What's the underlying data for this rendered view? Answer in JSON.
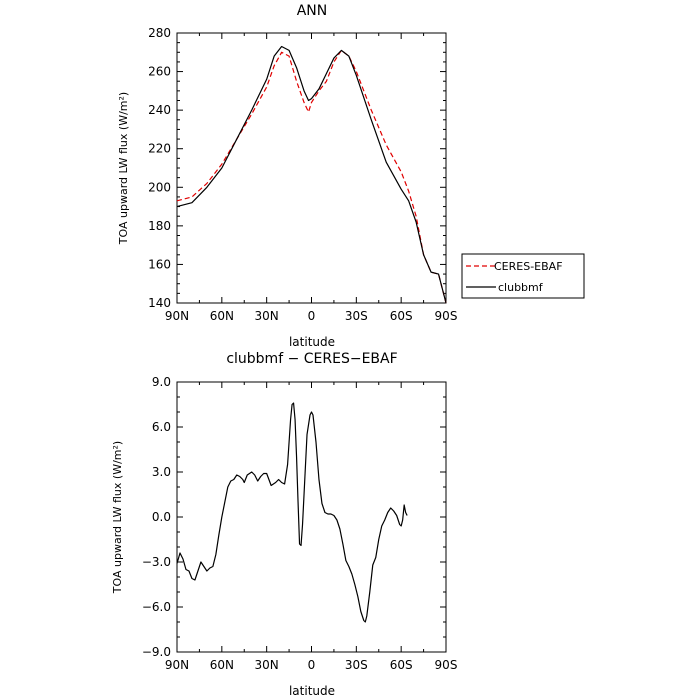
{
  "chart_data": [
    {
      "type": "line",
      "title": "ANN",
      "xlabel": "latitude",
      "ylabel": "TOA upward LW flux (W/m²)",
      "xlim": [
        90,
        -90
      ],
      "ylim": [
        140,
        280
      ],
      "xticks": [
        {
          "v": 90,
          "label": "90N"
        },
        {
          "v": 60,
          "label": "60N"
        },
        {
          "v": 30,
          "label": "30N"
        },
        {
          "v": 0,
          "label": "0"
        },
        {
          "v": -30,
          "label": "30S"
        },
        {
          "v": -60,
          "label": "60S"
        },
        {
          "v": -90,
          "label": "90S"
        }
      ],
      "yticks": [
        {
          "v": 140,
          "label": "140"
        },
        {
          "v": 160,
          "label": "160"
        },
        {
          "v": 180,
          "label": "180"
        },
        {
          "v": 200,
          "label": "200"
        },
        {
          "v": 220,
          "label": "220"
        },
        {
          "v": 240,
          "label": "240"
        },
        {
          "v": 260,
          "label": "260"
        },
        {
          "v": 280,
          "label": "280"
        }
      ],
      "legend": "outside-right",
      "series": [
        {
          "name": "CERES-EBAF",
          "color": "#e00000",
          "dash": "dashed",
          "points": [
            [
              90,
              193
            ],
            [
              80,
              195
            ],
            [
              70,
              202
            ],
            [
              60,
              212
            ],
            [
              50,
              225
            ],
            [
              40,
              238
            ],
            [
              30,
              252
            ],
            [
              25,
              263
            ],
            [
              20,
              270
            ],
            [
              15,
              268
            ],
            [
              10,
              255
            ],
            [
              5,
              244
            ],
            [
              2,
              239
            ],
            [
              0,
              244
            ],
            [
              -5,
              250
            ],
            [
              -10,
              255
            ],
            [
              -15,
              265
            ],
            [
              -20,
              271
            ],
            [
              -25,
              268
            ],
            [
              -30,
              260
            ],
            [
              -40,
              240
            ],
            [
              -50,
              222
            ],
            [
              -60,
              208
            ],
            [
              -65,
              198
            ],
            [
              -70,
              185
            ],
            [
              -75,
              165
            ],
            [
              -80,
              156
            ],
            [
              -85,
              155
            ],
            [
              -90,
              140
            ]
          ]
        },
        {
          "name": "clubbmf",
          "color": "#000000",
          "dash": "solid",
          "points": [
            [
              90,
              190
            ],
            [
              80,
              192
            ],
            [
              70,
              200
            ],
            [
              60,
              210
            ],
            [
              50,
              225
            ],
            [
              40,
              240
            ],
            [
              30,
              256
            ],
            [
              25,
              268
            ],
            [
              20,
              273
            ],
            [
              15,
              271
            ],
            [
              10,
              262
            ],
            [
              5,
              250
            ],
            [
              2,
              245
            ],
            [
              0,
              246
            ],
            [
              -5,
              251
            ],
            [
              -10,
              259
            ],
            [
              -15,
              267
            ],
            [
              -20,
              271
            ],
            [
              -25,
              268
            ],
            [
              -30,
              258
            ],
            [
              -40,
              235
            ],
            [
              -50,
              213
            ],
            [
              -60,
              199
            ],
            [
              -65,
              193
            ],
            [
              -70,
              182
            ],
            [
              -75,
              165
            ],
            [
              -80,
              156
            ],
            [
              -85,
              155
            ],
            [
              -90,
              140
            ]
          ]
        }
      ]
    },
    {
      "type": "line",
      "title": "clubbmf − CERES−EBAF",
      "xlabel": "latitude",
      "ylabel": "TOA upward LW flux (W/m²)",
      "xlim": [
        90,
        -90
      ],
      "ylim": [
        -9,
        9
      ],
      "xticks": [
        {
          "v": 90,
          "label": "90N"
        },
        {
          "v": 60,
          "label": "60N"
        },
        {
          "v": 30,
          "label": "30N"
        },
        {
          "v": 0,
          "label": "0"
        },
        {
          "v": -30,
          "label": "30S"
        },
        {
          "v": -60,
          "label": "60S"
        },
        {
          "v": -90,
          "label": "90S"
        }
      ],
      "yticks": [
        {
          "v": -9,
          "label": "−9.0"
        },
        {
          "v": -6,
          "label": "−6.0"
        },
        {
          "v": -3,
          "label": "−3.0"
        },
        {
          "v": 0,
          "label": "0.0"
        },
        {
          "v": 3,
          "label": "3.0"
        },
        {
          "v": 6,
          "label": "6.0"
        },
        {
          "v": 9,
          "label": "9.0"
        }
      ],
      "series": [
        {
          "color": "#000000",
          "dash": "solid",
          "points": [
            [
              90,
              -3.1
            ],
            [
              88,
              -2.4
            ],
            [
              86,
              -2.8
            ],
            [
              84,
              -3.5
            ],
            [
              82,
              -3.6
            ],
            [
              80,
              -4.1
            ],
            [
              78,
              -4.2
            ],
            [
              76,
              -3.6
            ],
            [
              74,
              -3.0
            ],
            [
              72,
              -3.3
            ],
            [
              70,
              -3.6
            ],
            [
              68,
              -3.4
            ],
            [
              66,
              -3.3
            ],
            [
              64,
              -2.5
            ],
            [
              62,
              -1.2
            ],
            [
              60,
              0.0
            ],
            [
              58,
              1.0
            ],
            [
              56,
              2.0
            ],
            [
              54,
              2.4
            ],
            [
              52,
              2.5
            ],
            [
              50,
              2.8
            ],
            [
              48,
              2.7
            ],
            [
              46,
              2.5
            ],
            [
              45,
              2.3
            ],
            [
              43,
              2.8
            ],
            [
              40,
              3.0
            ],
            [
              38,
              2.8
            ],
            [
              36,
              2.4
            ],
            [
              34,
              2.7
            ],
            [
              32,
              2.9
            ],
            [
              30,
              2.9
            ],
            [
              27,
              2.1
            ],
            [
              24,
              2.3
            ],
            [
              22,
              2.5
            ],
            [
              20,
              2.3
            ],
            [
              18,
              2.2
            ],
            [
              16,
              3.5
            ],
            [
              14,
              6.5
            ],
            [
              13,
              7.5
            ],
            [
              12,
              7.6
            ],
            [
              11,
              6.5
            ],
            [
              10,
              4.0
            ],
            [
              9,
              1.0
            ],
            [
              8,
              -1.8
            ],
            [
              7,
              -1.9
            ],
            [
              6,
              -0.5
            ],
            [
              5,
              1.5
            ],
            [
              4,
              3.5
            ],
            [
              3,
              5.5
            ],
            [
              1,
              6.8
            ],
            [
              0,
              7.0
            ],
            [
              -1,
              6.8
            ],
            [
              -3,
              5.0
            ],
            [
              -5,
              2.5
            ],
            [
              -7,
              0.9
            ],
            [
              -9,
              0.3
            ],
            [
              -11,
              0.2
            ],
            [
              -13,
              0.2
            ],
            [
              -15,
              0.1
            ],
            [
              -17,
              -0.2
            ],
            [
              -19,
              -0.8
            ],
            [
              -21,
              -1.8
            ],
            [
              -23,
              -2.9
            ],
            [
              -25,
              -3.3
            ],
            [
              -27,
              -3.8
            ],
            [
              -29,
              -4.5
            ],
            [
              -31,
              -5.3
            ],
            [
              -33,
              -6.3
            ],
            [
              -35,
              -6.9
            ],
            [
              -36,
              -7.0
            ],
            [
              -37,
              -6.6
            ],
            [
              -39,
              -5.0
            ],
            [
              -41,
              -3.2
            ],
            [
              -43,
              -2.7
            ],
            [
              -45,
              -1.5
            ],
            [
              -47,
              -0.6
            ],
            [
              -49,
              -0.2
            ],
            [
              -51,
              0.3
            ],
            [
              -53,
              0.6
            ],
            [
              -55,
              0.4
            ],
            [
              -57,
              0.1
            ],
            [
              -59,
              -0.5
            ],
            [
              -60,
              -0.6
            ],
            [
              -61,
              -0.2
            ],
            [
              -62,
              0.8
            ],
            [
              -63,
              0.3
            ],
            [
              -64,
              0.1
            ]
          ]
        }
      ]
    }
  ]
}
